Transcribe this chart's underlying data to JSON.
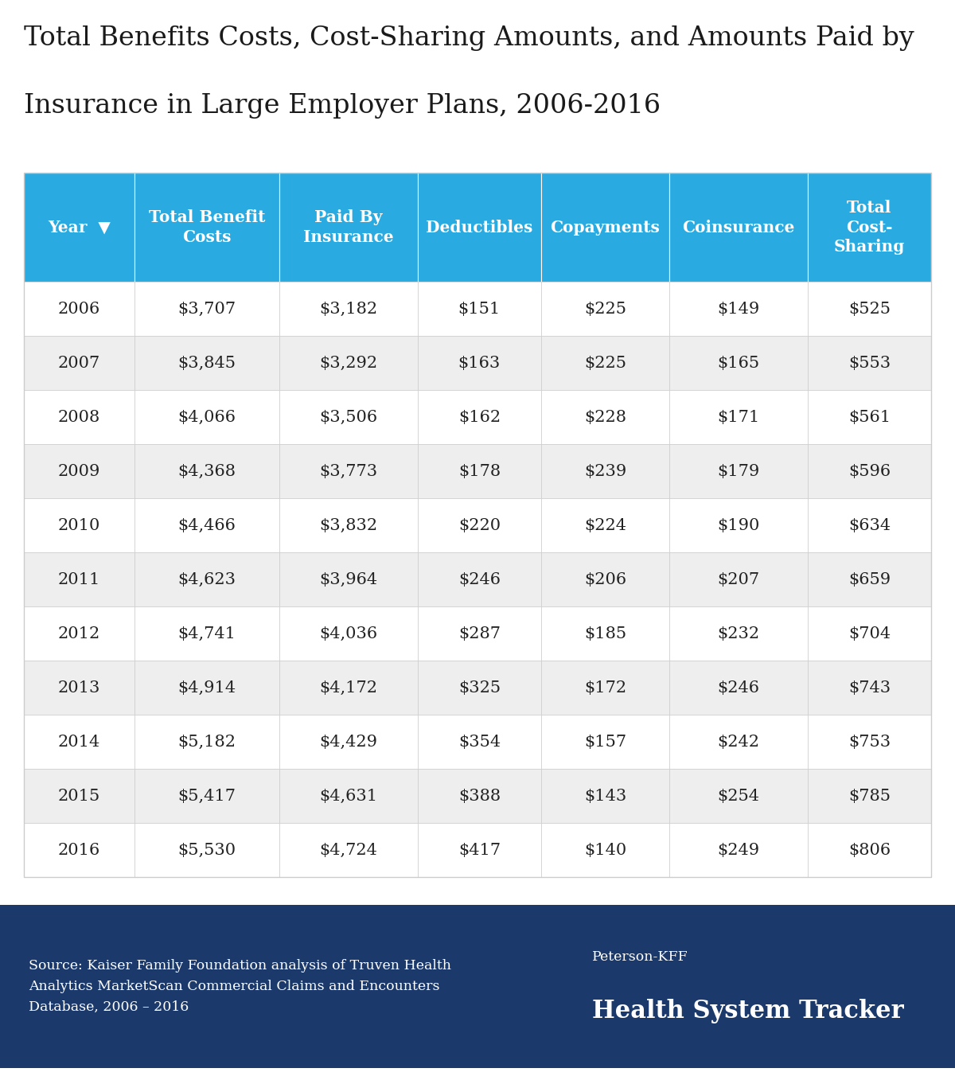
{
  "title_line1": "Total Benefits Costs, Cost-Sharing Amounts, and Amounts Paid by",
  "title_line2": "Insurance in Large Employer Plans, 2006-2016",
  "title_color": "#1a1a1a",
  "title_fontsize": 24,
  "header_bg_color": "#29abe2",
  "header_text_color": "#ffffff",
  "columns": [
    "Year  ▼",
    "Total Benefit\nCosts",
    "Paid By\nInsurance",
    "Deductibles",
    "Copayments",
    "Coinsurance",
    "Total\nCost-\nSharing"
  ],
  "rows": [
    [
      "2006",
      "$3,707",
      "$3,182",
      "$151",
      "$225",
      "$149",
      "$525"
    ],
    [
      "2007",
      "$3,845",
      "$3,292",
      "$163",
      "$225",
      "$165",
      "$553"
    ],
    [
      "2008",
      "$4,066",
      "$3,506",
      "$162",
      "$228",
      "$171",
      "$561"
    ],
    [
      "2009",
      "$4,368",
      "$3,773",
      "$178",
      "$239",
      "$179",
      "$596"
    ],
    [
      "2010",
      "$4,466",
      "$3,832",
      "$220",
      "$224",
      "$190",
      "$634"
    ],
    [
      "2011",
      "$4,623",
      "$3,964",
      "$246",
      "$206",
      "$207",
      "$659"
    ],
    [
      "2012",
      "$4,741",
      "$4,036",
      "$287",
      "$185",
      "$232",
      "$704"
    ],
    [
      "2013",
      "$4,914",
      "$4,172",
      "$325",
      "$172",
      "$246",
      "$743"
    ],
    [
      "2014",
      "$5,182",
      "$4,429",
      "$354",
      "$157",
      "$242",
      "$753"
    ],
    [
      "2015",
      "$5,417",
      "$4,631",
      "$388",
      "$143",
      "$254",
      "$785"
    ],
    [
      "2016",
      "$5,530",
      "$4,724",
      "$417",
      "$140",
      "$249",
      "$806"
    ]
  ],
  "row_colors": [
    "#ffffff",
    "#eeeeee"
  ],
  "cell_text_color": "#222222",
  "border_color": "#cccccc",
  "footer_bg_color": "#1b3a6b",
  "footer_text_color": "#ffffff",
  "footer_source": "Source: Kaiser Family Foundation analysis of Truven Health\nAnalytics MarketScan Commercial Claims and Encounters\nDatabase, 2006 – 2016",
  "footer_brand_line1": "Peterson-KFF",
  "footer_brand_line2": "Health System Tracker",
  "footer_source_fontsize": 12.5,
  "footer_brand_fontsize_small": 12.5,
  "footer_brand_fontsize_large": 22,
  "cell_fontsize": 15,
  "header_fontsize": 14.5
}
